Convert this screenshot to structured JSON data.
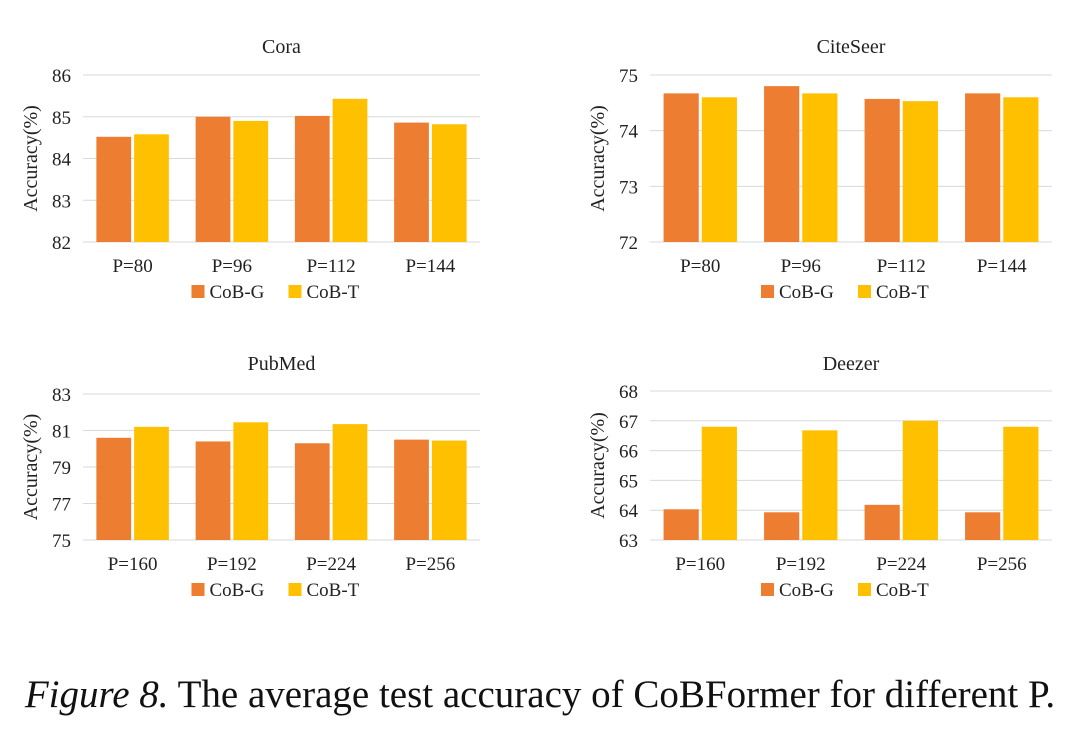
{
  "colors": {
    "cob_g": "#ED7D31",
    "cob_t": "#FFC000",
    "grid": "#d9d9d9",
    "text": "#222222"
  },
  "chart_data": [
    {
      "type": "bar",
      "title": "Cora",
      "xlabel": "",
      "ylabel": "Accuracy(%)",
      "ylim": [
        82,
        86
      ],
      "yticks": [
        "82",
        "83",
        "84",
        "85",
        "86"
      ],
      "grid": true,
      "categories": [
        "P=80",
        "P=96",
        "P=112",
        "P=144"
      ],
      "series": [
        {
          "name": "CoB-G",
          "values": [
            84.52,
            85.0,
            85.02,
            84.86
          ]
        },
        {
          "name": "CoB-T",
          "values": [
            84.58,
            84.9,
            85.43,
            84.82
          ]
        }
      ],
      "legend": "bottom-center"
    },
    {
      "type": "bar",
      "title": "CiteSeer",
      "xlabel": "",
      "ylabel": "Accuracy(%)",
      "ylim": [
        72,
        75
      ],
      "yticks": [
        "72",
        "73",
        "74",
        "75"
      ],
      "grid": true,
      "categories": [
        "P=80",
        "P=96",
        "P=112",
        "P=144"
      ],
      "series": [
        {
          "name": "CoB-G",
          "values": [
            74.67,
            74.8,
            74.57,
            74.67
          ]
        },
        {
          "name": "CoB-T",
          "values": [
            74.6,
            74.67,
            74.53,
            74.6
          ]
        }
      ],
      "legend": "bottom-center"
    },
    {
      "type": "bar",
      "title": "PubMed",
      "xlabel": "",
      "ylabel": "Accuracy(%)",
      "ylim": [
        75,
        83
      ],
      "yticks": [
        "75",
        "77",
        "79",
        "81",
        "83"
      ],
      "grid": true,
      "categories": [
        "P=160",
        "P=192",
        "P=224",
        "P=256"
      ],
      "series": [
        {
          "name": "CoB-G",
          "values": [
            80.6,
            80.4,
            80.3,
            80.5
          ]
        },
        {
          "name": "CoB-T",
          "values": [
            81.2,
            81.45,
            81.35,
            80.45
          ]
        }
      ],
      "legend": "bottom-center"
    },
    {
      "type": "bar",
      "title": "Deezer",
      "xlabel": "",
      "ylabel": "Accuracy(%)",
      "ylim": [
        63,
        68
      ],
      "yticks": [
        "63",
        "64",
        "65",
        "66",
        "67",
        "68"
      ],
      "grid": true,
      "categories": [
        "P=160",
        "P=192",
        "P=224",
        "P=256"
      ],
      "series": [
        {
          "name": "CoB-G",
          "values": [
            64.03,
            63.93,
            64.18,
            63.93
          ]
        },
        {
          "name": "CoB-T",
          "values": [
            66.8,
            66.68,
            67.0,
            66.8
          ]
        }
      ],
      "legend": "bottom-center"
    }
  ],
  "caption": {
    "label": "Figure 8.",
    "text": " The average test accuracy of CoBFormer for different P."
  }
}
